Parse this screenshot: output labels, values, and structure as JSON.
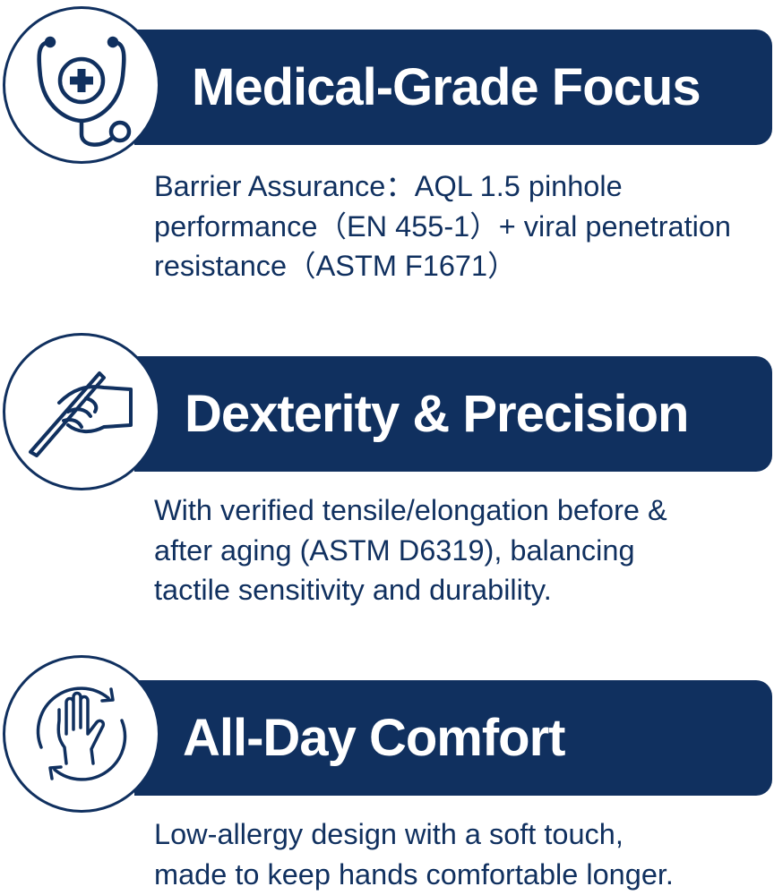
{
  "colors": {
    "navy": "#10305f",
    "background": "#ffffff"
  },
  "features": [
    {
      "icon": "stethoscope-icon",
      "title": "Medical-Grade Focus",
      "lines": [
        "Barrier Assurance：AQL 1.5 pinhole",
        "performance（EN 455-1）+ viral penetration",
        "resistance（ASTM F1671）"
      ]
    },
    {
      "icon": "hand-writing-pen-icon",
      "title": "Dexterity & Precision",
      "lines": [
        "With verified tensile/elongation before &",
        "after aging (ASTM D6319), balancing",
        "tactile sensitivity and durability."
      ]
    },
    {
      "icon": "hand-rotation-icon",
      "title": "All-Day Comfort",
      "lines": [
        "Low-allergy design with a soft touch,",
        "made to keep hands comfortable longer."
      ]
    }
  ]
}
